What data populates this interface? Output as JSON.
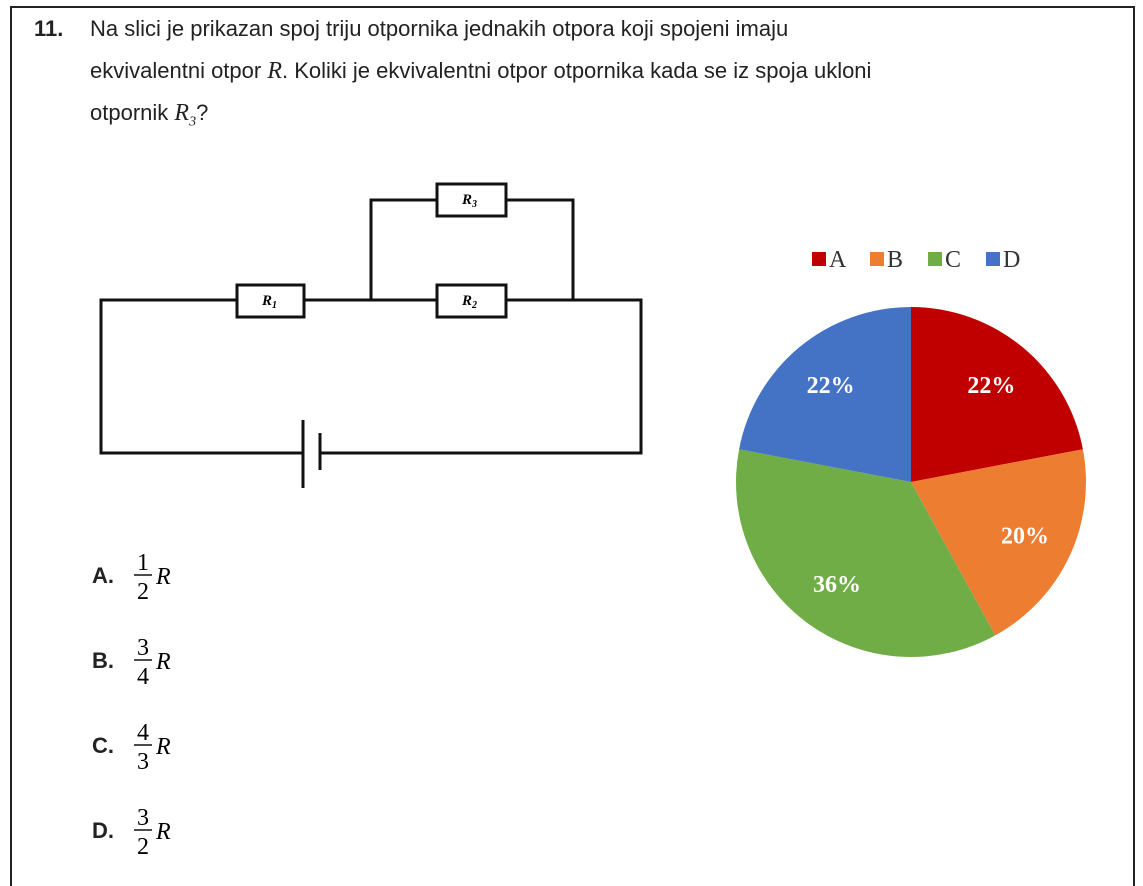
{
  "question": {
    "number": "11.",
    "lines": [
      [
        "Na slici je prikazan spoj triju otpornika jednakih otpora koji spojeni imaju"
      ],
      [
        "ekvivalentni otpor ",
        "R",
        ". Koliki je ekvivalentni otpor otpornika kada se iz spoja ukloni"
      ],
      [
        "otpornik ",
        "R",
        "3",
        "?"
      ]
    ]
  },
  "circuit": {
    "resistors": [
      {
        "symbol": "R",
        "index": "1"
      },
      {
        "symbol": "R",
        "index": "2"
      },
      {
        "symbol": "R",
        "index": "3"
      }
    ]
  },
  "options": [
    {
      "letter": "A.",
      "numerator": "1",
      "denominator": "2",
      "variable": "R"
    },
    {
      "letter": "B.",
      "numerator": "3",
      "denominator": "4",
      "variable": "R"
    },
    {
      "letter": "C.",
      "numerator": "4",
      "denominator": "3",
      "variable": "R"
    },
    {
      "letter": "D.",
      "numerator": "3",
      "denominator": "2",
      "variable": "R"
    }
  ],
  "chart_data": {
    "type": "pie",
    "categories": [
      "A",
      "B",
      "C",
      "D"
    ],
    "values": [
      22,
      20,
      36,
      22
    ],
    "value_labels": [
      "22%",
      "20%",
      "36%",
      "22%"
    ],
    "colors": [
      "#c00000",
      "#ed7d31",
      "#70ad47",
      "#4472c4"
    ],
    "legend": "top"
  }
}
